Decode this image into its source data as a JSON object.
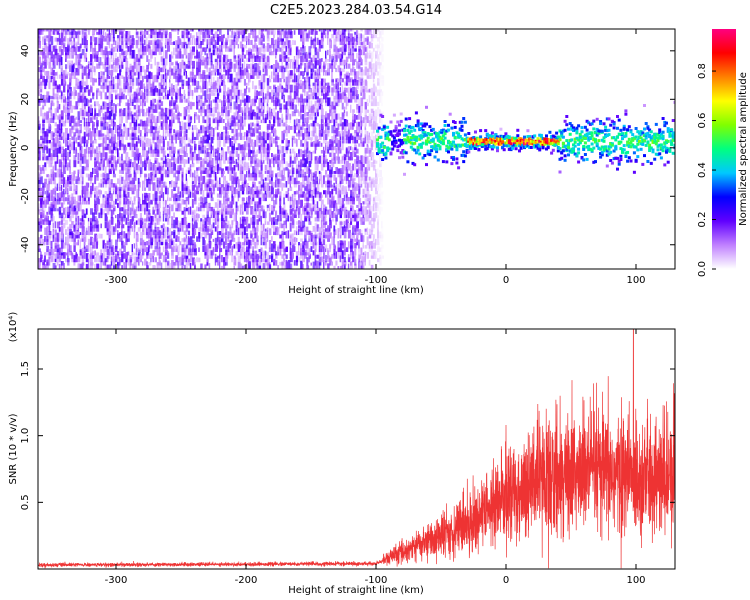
{
  "title": "C2E5.2023.284.03.54.G14",
  "colors": {
    "spectrum_low": "#7f00ff",
    "snr_line": "#ee3333",
    "colorbar_stops": [
      "#ffffff",
      "#c080ff",
      "#6000ff",
      "#0000ff",
      "#00c8ff",
      "#00ff80",
      "#80ff00",
      "#ffff00",
      "#ff8000",
      "#ff0000",
      "#ff0080"
    ]
  },
  "chart_data": [
    {
      "type": "heatmap",
      "xlabel": "Height of straight line (km)",
      "ylabel": "Frequency (Hz)",
      "xlim": [
        -360,
        130
      ],
      "ylim": [
        -50,
        49
      ],
      "xticks": [
        -300,
        -200,
        -100,
        0,
        100
      ],
      "yticks": [
        -40,
        -20,
        0,
        20,
        40
      ],
      "noise_region_x": [
        -360,
        -95
      ],
      "signal_center_freq_hz": 2,
      "colorbar": {
        "label": "Normalized spectral amplitude",
        "range": [
          0.0,
          0.97
        ],
        "ticks": [
          "0.0",
          "0.2",
          "0.4",
          "0.6",
          "0.8"
        ]
      }
    },
    {
      "type": "line",
      "xlabel": "Height of straight line (km)",
      "ylabel": "SNR (10 * v/v)",
      "y_multiplier": "(x10⁴)",
      "xlim": [
        -360,
        130
      ],
      "ylim": [
        0,
        1.8
      ],
      "xticks": [
        -300,
        -200,
        -100,
        0,
        100
      ],
      "yticks": [
        "0.5",
        "1.0",
        "1.5"
      ],
      "envelope": [
        {
          "x": -360,
          "y": 0.03
        },
        {
          "x": -100,
          "y": 0.04
        },
        {
          "x": -75,
          "y": 0.15
        },
        {
          "x": -50,
          "y": 0.25
        },
        {
          "x": -20,
          "y": 0.4
        },
        {
          "x": 0,
          "y": 0.55
        },
        {
          "x": 30,
          "y": 0.68
        },
        {
          "x": 60,
          "y": 0.72
        },
        {
          "x": 100,
          "y": 0.7
        },
        {
          "x": 130,
          "y": 0.65
        }
      ],
      "peak": {
        "x": 98,
        "y": 1.8
      }
    }
  ]
}
